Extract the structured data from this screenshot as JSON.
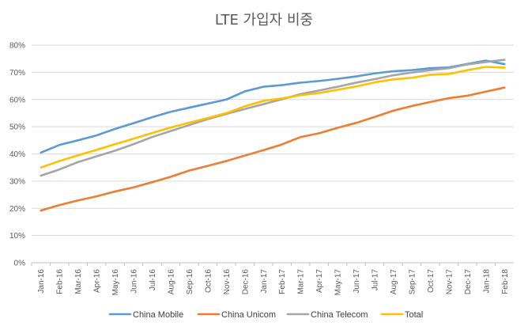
{
  "chart_data": {
    "type": "line",
    "title": "LTE 가입자 비중",
    "xlabel": "",
    "ylabel": "",
    "ylim": [
      0,
      80
    ],
    "yticks": [
      "0%",
      "10%",
      "20%",
      "30%",
      "40%",
      "50%",
      "60%",
      "70%",
      "80%"
    ],
    "yticks_values": [
      0,
      10,
      20,
      30,
      40,
      50,
      60,
      70,
      80
    ],
    "grid": true,
    "legend_position": "bottom",
    "categories": [
      "Jan-16",
      "Feb-16",
      "Mar-16",
      "Apr-16",
      "May-16",
      "Jun-16",
      "Jul-16",
      "Aug-16",
      "Sep-16",
      "Oct-16",
      "Nov-16",
      "Dec-16",
      "Jan-17",
      "Feb-17",
      "Mar-17",
      "Apr-17",
      "May-17",
      "Jun-17",
      "Jul-17",
      "Aug-17",
      "Sep-17",
      "Oct-17",
      "Nov-17",
      "Dec-17",
      "Jan-18",
      "Feb-18"
    ],
    "series": [
      {
        "name": "China Mobile",
        "color": "#5b9bd5",
        "values": [
          40.5,
          43.3,
          45,
          46.8,
          49.2,
          51.3,
          53.5,
          55.5,
          57,
          58.5,
          60,
          63,
          64.7,
          65.3,
          66.2,
          66.8,
          67.6,
          68.5,
          69.6,
          70.4,
          70.8,
          71.5,
          71.8,
          73.1,
          74.3,
          73
        ]
      },
      {
        "name": "China Unicom",
        "color": "#ed7d31",
        "values": [
          19.2,
          21.2,
          22.9,
          24.4,
          26.2,
          27.7,
          29.6,
          31.6,
          33.9,
          35.6,
          37.4,
          39.4,
          41.4,
          43.5,
          46.2,
          47.6,
          49.6,
          51.4,
          53.6,
          55.9,
          57.6,
          59.1,
          60.5,
          61.4,
          62.9,
          64.4
        ]
      },
      {
        "name": "China Telecom",
        "color": "#a5a5a5",
        "values": [
          32,
          34.3,
          37,
          39.1,
          41.2,
          43.6,
          46.2,
          48.4,
          50.6,
          52.8,
          54.7,
          56.5,
          58.3,
          60.1,
          62,
          63.3,
          64.7,
          66.2,
          67.5,
          68.9,
          69.9,
          70.8,
          71.5,
          72.9,
          73.8,
          74.6
        ]
      },
      {
        "name": "Total",
        "color": "#ffc000",
        "values": [
          35,
          37.4,
          39.5,
          41.5,
          43.6,
          45.6,
          47.7,
          49.7,
          51.5,
          53.2,
          55,
          57.5,
          59.5,
          60.4,
          61.6,
          62.4,
          63.6,
          64.8,
          66.3,
          67.4,
          68,
          69.1,
          69.4,
          70.8,
          72,
          71.7
        ]
      }
    ]
  }
}
